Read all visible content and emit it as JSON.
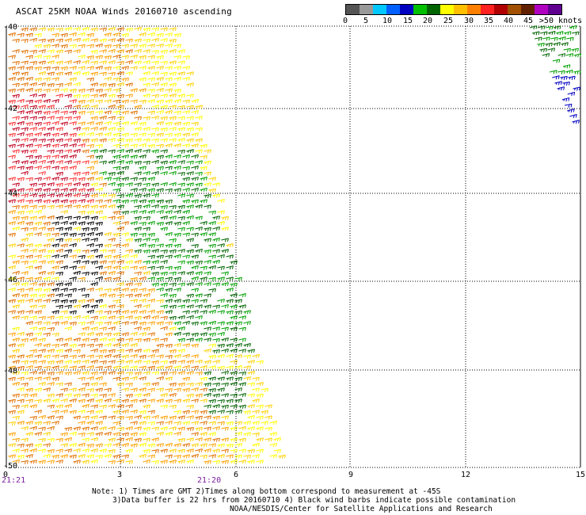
{
  "title": "ASCAT 25KM NOAA Winds 20160710 ascending",
  "scale": {
    "colors": [
      "#555555",
      "#999999",
      "#00c8ff",
      "#0060ff",
      "#0000c0",
      "#00c000",
      "#006400",
      "#ffff00",
      "#ffc000",
      "#ff8000",
      "#ff2020",
      "#b00000",
      "#a05000",
      "#602000",
      "#b000c0",
      "#600090"
    ],
    "labels": [
      "0",
      "5",
      "10",
      "15",
      "20",
      "25",
      "30",
      "35",
      "40",
      "45",
      ">50 knots"
    ]
  },
  "map": {
    "latitude_labels": [
      "-40",
      "-42",
      "-44",
      "-46",
      "-48",
      "-50"
    ],
    "longitude_labels": [
      "0",
      "3",
      "6",
      "9",
      "12",
      "15"
    ],
    "time_labels": [
      "21:21",
      "21:20"
    ]
  },
  "wind_colors": {
    "calm": "#00a000",
    "calm_dark": "#006400",
    "light": "#ffff00",
    "light2": "#ffd000",
    "moderate": "#ffa000",
    "fresh": "#e07000",
    "strong": "#ff3030",
    "gale": "#c00020",
    "contaminated": "#000000",
    "east_blue": "#0000c0",
    "east_green": "#00a000"
  },
  "notes": [
    "Note: 1) Times are GMT 2)Times along bottom correspond to measurement at -45S",
    "3)Data buffer is 22 hrs from 20160710 4) Black wind barbs indicate possible contamination",
    "NOAA/NESDIS/Center for Satellite Applications and Research"
  ]
}
